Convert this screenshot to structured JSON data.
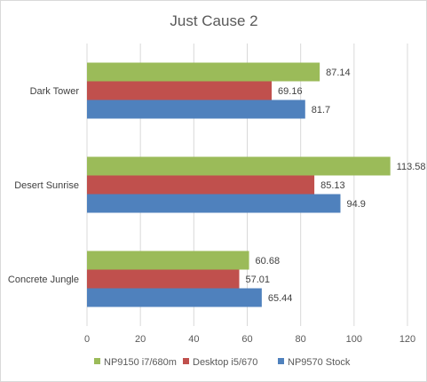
{
  "chart_data": {
    "type": "bar",
    "orientation": "horizontal",
    "title": "Just Cause 2",
    "categories": [
      "Dark Tower",
      "Desert Sunrise",
      "Concrete Jungle"
    ],
    "series": [
      {
        "name": "NP9150 i7/680m",
        "color": "#9bbb59",
        "values": [
          87.14,
          113.58,
          60.68
        ]
      },
      {
        "name": "Desktop i5/670",
        "color": "#c0504d",
        "values": [
          69.16,
          85.13,
          57.01
        ]
      },
      {
        "name": "NP9570 Stock",
        "color": "#4f81bd",
        "values": [
          81.7,
          94.9,
          65.44
        ]
      }
    ],
    "xlim": [
      0,
      120
    ],
    "xticks": [
      0,
      20,
      40,
      60,
      80,
      100,
      120
    ],
    "grid": true,
    "legend_position": "bottom"
  }
}
